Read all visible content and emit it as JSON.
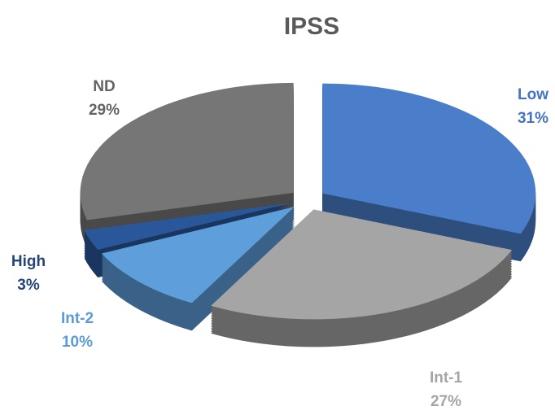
{
  "chart_data": {
    "type": "pie",
    "title": "IPSS",
    "categories": [
      "Low",
      "Int-1",
      "Int-2",
      "High",
      "ND"
    ],
    "values": [
      31,
      27,
      10,
      3,
      29
    ],
    "value_labels": [
      "31%",
      "27%",
      "10%",
      "3%",
      "29%"
    ],
    "colors": [
      "#4a7ecb",
      "#a5a5a5",
      "#5d9edb",
      "#2a579a",
      "#767676"
    ],
    "label_colors": [
      "#4472c4",
      "#a5a5a5",
      "#5b9bd5",
      "#264478",
      "#636363"
    ],
    "exploded": true
  }
}
